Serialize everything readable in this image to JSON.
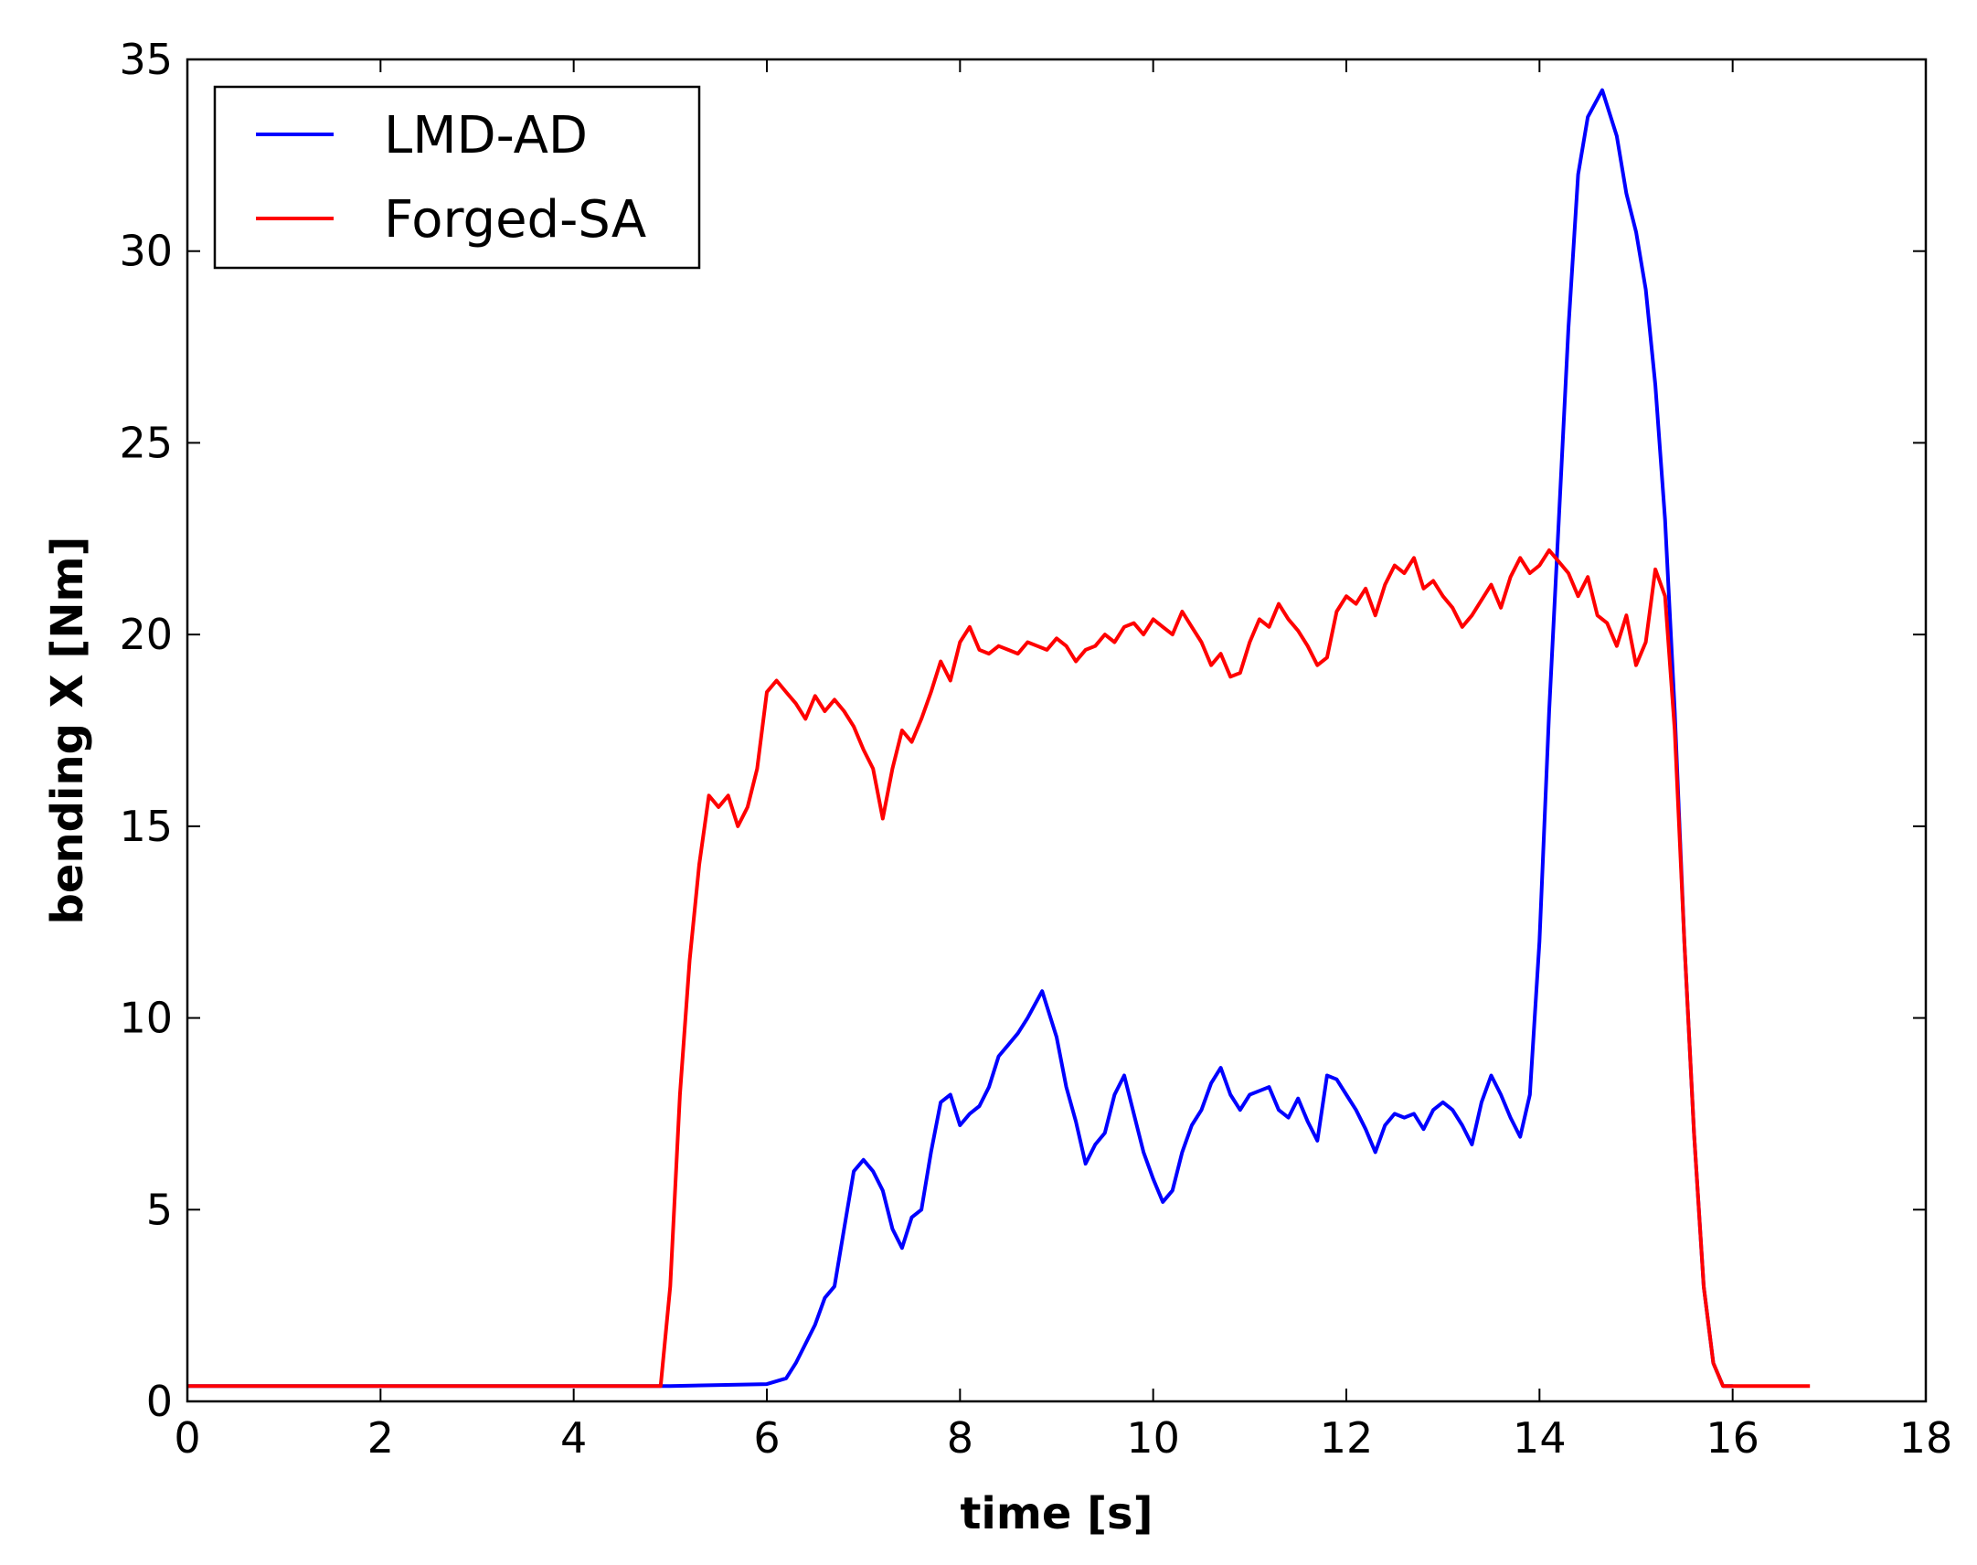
{
  "chart_data": {
    "type": "line",
    "xlabel": "time [s]",
    "ylabel": "bending X [Nm]",
    "xlim": [
      0,
      18
    ],
    "ylim": [
      0,
      35
    ],
    "xticks": [
      0,
      2,
      4,
      6,
      8,
      10,
      12,
      14,
      16,
      18
    ],
    "yticks": [
      0,
      5,
      10,
      15,
      20,
      25,
      30,
      35
    ],
    "grid": false,
    "legend_position": "top-left",
    "series": [
      {
        "name": "LMD-AD",
        "color": "#0000ff",
        "points": [
          [
            0,
            0.4
          ],
          [
            1,
            0.4
          ],
          [
            2,
            0.4
          ],
          [
            3,
            0.4
          ],
          [
            4,
            0.4
          ],
          [
            5,
            0.4
          ],
          [
            6,
            0.45
          ],
          [
            6.2,
            0.6
          ],
          [
            6.3,
            1.0
          ],
          [
            6.5,
            2.0
          ],
          [
            6.6,
            2.7
          ],
          [
            6.7,
            3.0
          ],
          [
            6.8,
            4.5
          ],
          [
            6.9,
            6.0
          ],
          [
            7.0,
            6.3
          ],
          [
            7.1,
            6.0
          ],
          [
            7.2,
            5.5
          ],
          [
            7.3,
            4.5
          ],
          [
            7.4,
            4.0
          ],
          [
            7.5,
            4.8
          ],
          [
            7.6,
            5.0
          ],
          [
            7.7,
            6.5
          ],
          [
            7.8,
            7.8
          ],
          [
            7.9,
            8.0
          ],
          [
            8.0,
            7.2
          ],
          [
            8.1,
            7.5
          ],
          [
            8.2,
            7.7
          ],
          [
            8.3,
            8.2
          ],
          [
            8.4,
            9.0
          ],
          [
            8.5,
            9.3
          ],
          [
            8.6,
            9.6
          ],
          [
            8.7,
            10.0
          ],
          [
            8.85,
            10.7
          ],
          [
            9.0,
            9.5
          ],
          [
            9.1,
            8.2
          ],
          [
            9.2,
            7.3
          ],
          [
            9.3,
            6.2
          ],
          [
            9.4,
            6.7
          ],
          [
            9.5,
            7.0
          ],
          [
            9.6,
            8.0
          ],
          [
            9.7,
            8.5
          ],
          [
            9.8,
            7.5
          ],
          [
            9.9,
            6.5
          ],
          [
            10.0,
            5.8
          ],
          [
            10.1,
            5.2
          ],
          [
            10.2,
            5.5
          ],
          [
            10.3,
            6.5
          ],
          [
            10.4,
            7.2
          ],
          [
            10.5,
            7.6
          ],
          [
            10.6,
            8.3
          ],
          [
            10.7,
            8.7
          ],
          [
            10.8,
            8.0
          ],
          [
            10.9,
            7.6
          ],
          [
            11.0,
            8.0
          ],
          [
            11.1,
            8.1
          ],
          [
            11.2,
            8.2
          ],
          [
            11.3,
            7.6
          ],
          [
            11.4,
            7.4
          ],
          [
            11.5,
            7.9
          ],
          [
            11.6,
            7.3
          ],
          [
            11.7,
            6.8
          ],
          [
            11.8,
            8.5
          ],
          [
            11.9,
            8.4
          ],
          [
            12.0,
            8.0
          ],
          [
            12.1,
            7.6
          ],
          [
            12.2,
            7.1
          ],
          [
            12.3,
            6.5
          ],
          [
            12.4,
            7.2
          ],
          [
            12.5,
            7.5
          ],
          [
            12.6,
            7.4
          ],
          [
            12.7,
            7.5
          ],
          [
            12.8,
            7.1
          ],
          [
            12.9,
            7.6
          ],
          [
            13.0,
            7.8
          ],
          [
            13.1,
            7.6
          ],
          [
            13.2,
            7.2
          ],
          [
            13.3,
            6.7
          ],
          [
            13.4,
            7.8
          ],
          [
            13.5,
            8.5
          ],
          [
            13.6,
            8.0
          ],
          [
            13.7,
            7.4
          ],
          [
            13.8,
            6.9
          ],
          [
            13.9,
            8.0
          ],
          [
            14.0,
            12.0
          ],
          [
            14.1,
            18.0
          ],
          [
            14.2,
            23.0
          ],
          [
            14.3,
            28.0
          ],
          [
            14.4,
            32.0
          ],
          [
            14.5,
            33.5
          ],
          [
            14.65,
            34.2
          ],
          [
            14.8,
            33.0
          ],
          [
            14.9,
            31.5
          ],
          [
            15.0,
            30.5
          ],
          [
            15.1,
            29.0
          ],
          [
            15.2,
            26.5
          ],
          [
            15.3,
            23.0
          ],
          [
            15.4,
            18.0
          ],
          [
            15.5,
            12.0
          ],
          [
            15.6,
            7.0
          ],
          [
            15.7,
            3.0
          ],
          [
            15.8,
            1.0
          ],
          [
            15.9,
            0.4
          ],
          [
            16.0,
            0.4
          ]
        ]
      },
      {
        "name": "Forged-SA",
        "color": "#ff0000",
        "points": [
          [
            0,
            0.4
          ],
          [
            1,
            0.4
          ],
          [
            2,
            0.4
          ],
          [
            3,
            0.4
          ],
          [
            4,
            0.4
          ],
          [
            4.9,
            0.4
          ],
          [
            5.0,
            3.0
          ],
          [
            5.1,
            8.0
          ],
          [
            5.2,
            11.5
          ],
          [
            5.3,
            14.0
          ],
          [
            5.4,
            15.8
          ],
          [
            5.5,
            15.5
          ],
          [
            5.6,
            15.8
          ],
          [
            5.7,
            15.0
          ],
          [
            5.8,
            15.5
          ],
          [
            5.9,
            16.5
          ],
          [
            6.0,
            18.5
          ],
          [
            6.1,
            18.8
          ],
          [
            6.2,
            18.5
          ],
          [
            6.3,
            18.2
          ],
          [
            6.4,
            17.8
          ],
          [
            6.5,
            18.4
          ],
          [
            6.6,
            18.0
          ],
          [
            6.7,
            18.3
          ],
          [
            6.8,
            18.0
          ],
          [
            6.9,
            17.6
          ],
          [
            7.0,
            17.0
          ],
          [
            7.1,
            16.5
          ],
          [
            7.2,
            15.2
          ],
          [
            7.3,
            16.5
          ],
          [
            7.4,
            17.5
          ],
          [
            7.5,
            17.2
          ],
          [
            7.6,
            17.8
          ],
          [
            7.7,
            18.5
          ],
          [
            7.8,
            19.3
          ],
          [
            7.9,
            18.8
          ],
          [
            8.0,
            19.8
          ],
          [
            8.1,
            20.2
          ],
          [
            8.2,
            19.6
          ],
          [
            8.3,
            19.5
          ],
          [
            8.4,
            19.7
          ],
          [
            8.5,
            19.6
          ],
          [
            8.6,
            19.5
          ],
          [
            8.7,
            19.8
          ],
          [
            8.8,
            19.7
          ],
          [
            8.9,
            19.6
          ],
          [
            9.0,
            19.9
          ],
          [
            9.1,
            19.7
          ],
          [
            9.2,
            19.3
          ],
          [
            9.3,
            19.6
          ],
          [
            9.4,
            19.7
          ],
          [
            9.5,
            20.0
          ],
          [
            9.6,
            19.8
          ],
          [
            9.7,
            20.2
          ],
          [
            9.8,
            20.3
          ],
          [
            9.9,
            20.0
          ],
          [
            10.0,
            20.4
          ],
          [
            10.1,
            20.2
          ],
          [
            10.2,
            20.0
          ],
          [
            10.3,
            20.6
          ],
          [
            10.4,
            20.2
          ],
          [
            10.5,
            19.8
          ],
          [
            10.6,
            19.2
          ],
          [
            10.7,
            19.5
          ],
          [
            10.8,
            18.9
          ],
          [
            10.9,
            19.0
          ],
          [
            11.0,
            19.8
          ],
          [
            11.1,
            20.4
          ],
          [
            11.2,
            20.2
          ],
          [
            11.3,
            20.8
          ],
          [
            11.4,
            20.4
          ],
          [
            11.5,
            20.1
          ],
          [
            11.6,
            19.7
          ],
          [
            11.7,
            19.2
          ],
          [
            11.8,
            19.4
          ],
          [
            11.9,
            20.6
          ],
          [
            12.0,
            21.0
          ],
          [
            12.1,
            20.8
          ],
          [
            12.2,
            21.2
          ],
          [
            12.3,
            20.5
          ],
          [
            12.4,
            21.3
          ],
          [
            12.5,
            21.8
          ],
          [
            12.6,
            21.6
          ],
          [
            12.7,
            22.0
          ],
          [
            12.8,
            21.2
          ],
          [
            12.9,
            21.4
          ],
          [
            13.0,
            21.0
          ],
          [
            13.1,
            20.7
          ],
          [
            13.2,
            20.2
          ],
          [
            13.3,
            20.5
          ],
          [
            13.4,
            20.9
          ],
          [
            13.5,
            21.3
          ],
          [
            13.6,
            20.7
          ],
          [
            13.7,
            21.5
          ],
          [
            13.8,
            22.0
          ],
          [
            13.9,
            21.6
          ],
          [
            14.0,
            21.8
          ],
          [
            14.1,
            22.2
          ],
          [
            14.2,
            21.9
          ],
          [
            14.3,
            21.6
          ],
          [
            14.4,
            21.0
          ],
          [
            14.5,
            21.5
          ],
          [
            14.6,
            20.5
          ],
          [
            14.7,
            20.3
          ],
          [
            14.8,
            19.7
          ],
          [
            14.9,
            20.5
          ],
          [
            15.0,
            19.2
          ],
          [
            15.1,
            19.8
          ],
          [
            15.2,
            21.7
          ],
          [
            15.3,
            21.0
          ],
          [
            15.4,
            17.5
          ],
          [
            15.5,
            12.0
          ],
          [
            15.6,
            7.0
          ],
          [
            15.7,
            3.0
          ],
          [
            15.8,
            1.0
          ],
          [
            15.9,
            0.4
          ],
          [
            16.0,
            0.4
          ],
          [
            16.5,
            0.4
          ],
          [
            16.8,
            0.4
          ]
        ]
      }
    ]
  }
}
